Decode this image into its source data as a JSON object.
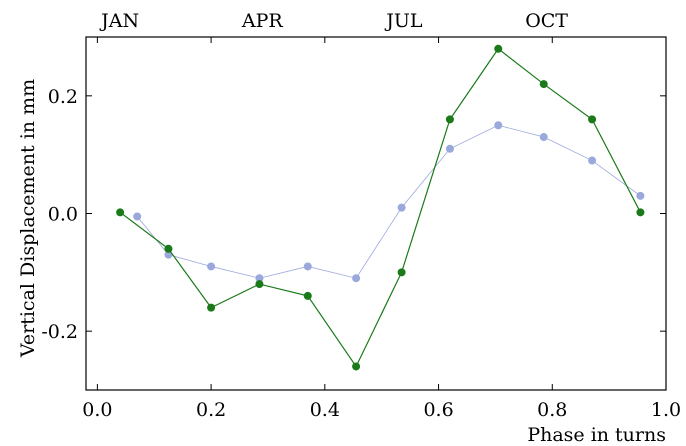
{
  "chart_data": {
    "type": "line",
    "title": "",
    "xlabel": "Phase in turns",
    "ylabel": "Vertical Displacement in mm",
    "xlim": [
      -0.02,
      1.0
    ],
    "ylim": [
      -0.3,
      0.3
    ],
    "grid": false,
    "x_ticks": [
      {
        "value": 0.0,
        "label": "0.0"
      },
      {
        "value": 0.2,
        "label": "0.2"
      },
      {
        "value": 0.4,
        "label": "0.4"
      },
      {
        "value": 0.6,
        "label": "0.6"
      },
      {
        "value": 0.8,
        "label": "0.8"
      },
      {
        "value": 1.0,
        "label": "1.0"
      }
    ],
    "y_ticks": [
      {
        "value": 0.2,
        "label": "0.2"
      },
      {
        "value": 0.0,
        "label": "0.0"
      },
      {
        "value": -0.2,
        "label": "-0.2"
      }
    ],
    "top_labels": [
      {
        "value": 0.04,
        "label": "JAN"
      },
      {
        "value": 0.29,
        "label": "APR"
      },
      {
        "value": 0.54,
        "label": "JUL"
      },
      {
        "value": 0.79,
        "label": "OCT"
      }
    ],
    "series": [
      {
        "color": "#9aa8dc",
        "line_width": 0.8,
        "points": [
          [
            0.07,
            -0.005
          ],
          [
            0.125,
            -0.07
          ],
          [
            0.2,
            -0.09
          ],
          [
            0.285,
            -0.11
          ],
          [
            0.37,
            -0.09
          ],
          [
            0.455,
            -0.11
          ],
          [
            0.535,
            0.01
          ],
          [
            0.62,
            0.11
          ],
          [
            0.705,
            0.15
          ],
          [
            0.785,
            0.13
          ],
          [
            0.87,
            0.09
          ],
          [
            0.955,
            0.03
          ]
        ]
      },
      {
        "color": "#1a7a1a",
        "line_width": 1.2,
        "points": [
          [
            0.04,
            0.002
          ],
          [
            0.125,
            -0.06
          ],
          [
            0.2,
            -0.16
          ],
          [
            0.285,
            -0.12
          ],
          [
            0.37,
            -0.14
          ],
          [
            0.455,
            -0.26
          ],
          [
            0.535,
            -0.1
          ],
          [
            0.62,
            0.16
          ],
          [
            0.705,
            0.28
          ],
          [
            0.785,
            0.22
          ],
          [
            0.87,
            0.16
          ],
          [
            0.955,
            0.002
          ]
        ]
      }
    ]
  }
}
